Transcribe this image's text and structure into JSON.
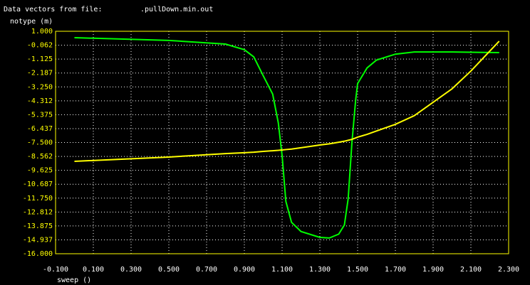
{
  "chart_data": {
    "type": "line",
    "title": "Data vectors from file:",
    "subtitle": ".pullDown.min.out",
    "y_label": "notype (m)",
    "x_label": "sweep ()",
    "grid": true,
    "background": "#000000",
    "axis_color": "#ffff00",
    "grid_color": "#ffffff",
    "x": [
      0,
      0.5,
      0.8,
      0.9,
      0.95,
      1.0,
      1.05,
      1.08,
      1.1,
      1.12,
      1.15,
      1.2,
      1.3,
      1.35,
      1.4,
      1.43,
      1.45,
      1.47,
      1.49,
      1.5,
      1.55,
      1.6,
      1.7,
      1.8,
      2.0,
      2.1,
      2.2,
      2.25
    ],
    "series": [
      {
        "color": "#00ff00",
        "values": [
          0.51,
          0.3,
          0.02,
          -0.41,
          -0.96,
          -2.4,
          -3.8,
          -6.0,
          -8.5,
          -12.0,
          -13.6,
          -14.3,
          -14.75,
          -14.8,
          -14.5,
          -13.8,
          -11.8,
          -7.5,
          -4.2,
          -3.0,
          -1.8,
          -1.2,
          -0.75,
          -0.58,
          -0.58,
          -0.6,
          -0.62,
          -0.63
        ]
      },
      {
        "color": "#ffff00",
        "values": [
          -8.94,
          -8.61,
          -8.35,
          -8.28,
          -8.24,
          -8.18,
          -8.13,
          -8.1,
          -8.07,
          -8.04,
          -8.0,
          -7.9,
          -7.69,
          -7.6,
          -7.48,
          -7.4,
          -7.33,
          -7.26,
          -7.15,
          -7.09,
          -6.88,
          -6.62,
          -6.11,
          -5.45,
          -3.4,
          -2.04,
          -0.52,
          0.24
        ]
      }
    ],
    "xlim": [
      -0.1,
      2.3
    ],
    "ylim": [
      -16,
      1
    ],
    "xticks": [
      {
        "value": -0.1,
        "label": "-0.100"
      },
      {
        "value": 0.1,
        "label": "0.100"
      },
      {
        "value": 0.3,
        "label": "0.300"
      },
      {
        "value": 0.5,
        "label": "0.500"
      },
      {
        "value": 0.7,
        "label": "0.700"
      },
      {
        "value": 0.9,
        "label": "0.900"
      },
      {
        "value": 1.1,
        "label": "1.100"
      },
      {
        "value": 1.3,
        "label": "1.300"
      },
      {
        "value": 1.5,
        "label": "1.500"
      },
      {
        "value": 1.7,
        "label": "1.700"
      },
      {
        "value": 1.9,
        "label": "1.900"
      },
      {
        "value": 2.1,
        "label": "2.100"
      },
      {
        "value": 2.3,
        "label": "2.300"
      }
    ],
    "yticks": [
      {
        "value": 1,
        "label": "1.000"
      },
      {
        "value": -0.0625,
        "label": "-0.062"
      },
      {
        "value": -1.125,
        "label": "-1.125"
      },
      {
        "value": -2.1875,
        "label": "-2.187"
      },
      {
        "value": -3.25,
        "label": "-3.250"
      },
      {
        "value": -4.3125,
        "label": "-4.312"
      },
      {
        "value": -5.375,
        "label": "-5.375"
      },
      {
        "value": -6.4375,
        "label": "-6.437"
      },
      {
        "value": -7.5,
        "label": "-7.500"
      },
      {
        "value": -8.5625,
        "label": "-8.562"
      },
      {
        "value": -9.625,
        "label": "-9.625"
      },
      {
        "value": -10.6875,
        "label": "-10.687"
      },
      {
        "value": -11.75,
        "label": "-11.750"
      },
      {
        "value": -12.8125,
        "label": "-12.812"
      },
      {
        "value": -13.875,
        "label": "-13.875"
      },
      {
        "value": -14.9375,
        "label": "-14.937"
      },
      {
        "value": -16,
        "label": "-16.000"
      }
    ]
  }
}
